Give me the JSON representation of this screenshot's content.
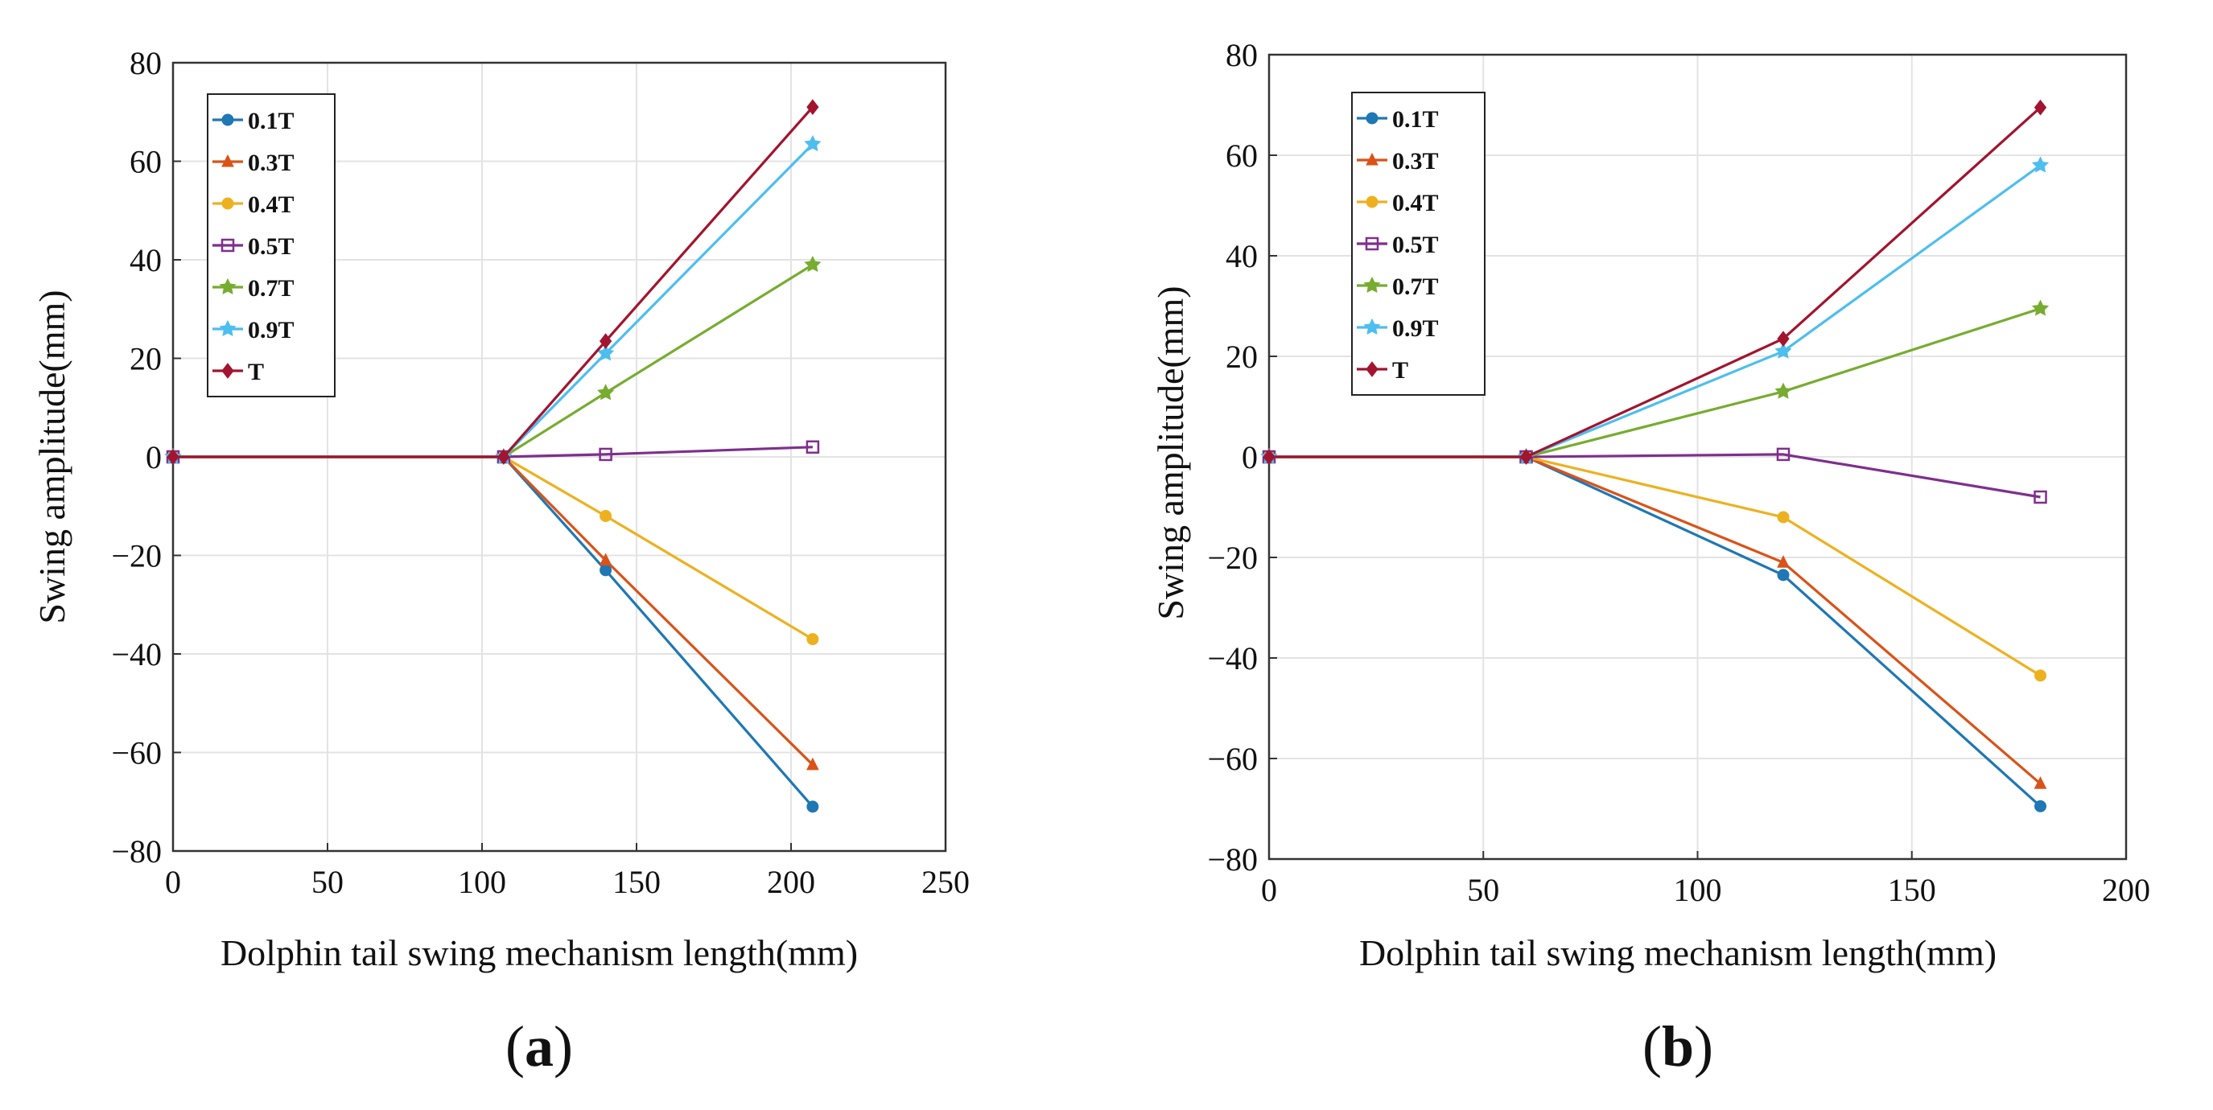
{
  "chart_data": [
    {
      "type": "line",
      "panel_label": "a",
      "xlabel": "Dolphin tail swing mechanism length(mm)",
      "ylabel": "Swing amplitude(mm)",
      "xlim": [
        0,
        250
      ],
      "ylim": [
        -80,
        80
      ],
      "xticks": [
        0,
        50,
        100,
        150,
        200,
        250
      ],
      "yticks": [
        -80,
        -60,
        -40,
        -20,
        0,
        20,
        40,
        60,
        80
      ],
      "grid": true,
      "legend_position": "top-left",
      "x": [
        0,
        107,
        140,
        207
      ],
      "series": [
        {
          "name": "0.1T",
          "values": [
            0,
            0,
            -23,
            -71
          ],
          "color": "#1f77b4",
          "marker": "circle"
        },
        {
          "name": "0.3T",
          "values": [
            0,
            0,
            -21,
            -62.5
          ],
          "color": "#d95319",
          "marker": "triangle"
        },
        {
          "name": "0.4T",
          "values": [
            0,
            0,
            -12,
            -37
          ],
          "color": "#edb120",
          "marker": "circle"
        },
        {
          "name": "0.5T",
          "values": [
            0,
            0,
            0.5,
            2
          ],
          "color": "#7e2f8e",
          "marker": "square"
        },
        {
          "name": "0.7T",
          "values": [
            0,
            0,
            13,
            39
          ],
          "color": "#77ac30",
          "marker": "star"
        },
        {
          "name": "0.9T",
          "values": [
            0,
            0,
            21,
            63.5
          ],
          "color": "#4dbeee",
          "marker": "star"
        },
        {
          "name": "T",
          "values": [
            0,
            0,
            23.5,
            71
          ],
          "color": "#a2142f",
          "marker": "diamond"
        }
      ]
    },
    {
      "type": "line",
      "panel_label": "b",
      "xlabel": "Dolphin tail swing mechanism length(mm)",
      "ylabel": "Swing amplitude(mm)",
      "xlim": [
        0,
        200
      ],
      "ylim": [
        -80,
        80
      ],
      "xticks": [
        0,
        50,
        100,
        150,
        200
      ],
      "yticks": [
        -80,
        -60,
        -40,
        -20,
        0,
        20,
        40,
        60,
        80
      ],
      "grid": true,
      "legend_position": "top-left",
      "x": [
        0,
        60,
        120,
        180
      ],
      "series": [
        {
          "name": "0.1T",
          "values": [
            0,
            0,
            -23.5,
            -69.5
          ],
          "color": "#1f77b4",
          "marker": "circle"
        },
        {
          "name": "0.3T",
          "values": [
            0,
            0,
            -21,
            -65
          ],
          "color": "#d95319",
          "marker": "triangle"
        },
        {
          "name": "0.4T",
          "values": [
            0,
            0,
            -12,
            -43.5
          ],
          "color": "#edb120",
          "marker": "circle"
        },
        {
          "name": "0.5T",
          "values": [
            0,
            0,
            0.5,
            -8
          ],
          "color": "#7e2f8e",
          "marker": "square"
        },
        {
          "name": "0.7T",
          "values": [
            0,
            0,
            13,
            29.5
          ],
          "color": "#77ac30",
          "marker": "star"
        },
        {
          "name": "0.9T",
          "values": [
            0,
            0,
            21,
            58
          ],
          "color": "#4dbeee",
          "marker": "star"
        },
        {
          "name": "T",
          "values": [
            0,
            0,
            23.5,
            69.5
          ],
          "color": "#a2142f",
          "marker": "diamond"
        }
      ]
    }
  ]
}
